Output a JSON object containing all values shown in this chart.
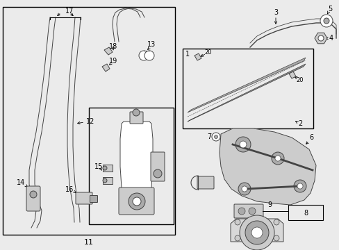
{
  "bg_color": "#ebebeb",
  "fig_width": 4.89,
  "fig_height": 3.6,
  "dpi": 100,
  "line_color": "#444444",
  "fill_light": "#cccccc",
  "fill_mid": "#aaaaaa",
  "fill_dark": "#888888",
  "white": "#ffffff"
}
